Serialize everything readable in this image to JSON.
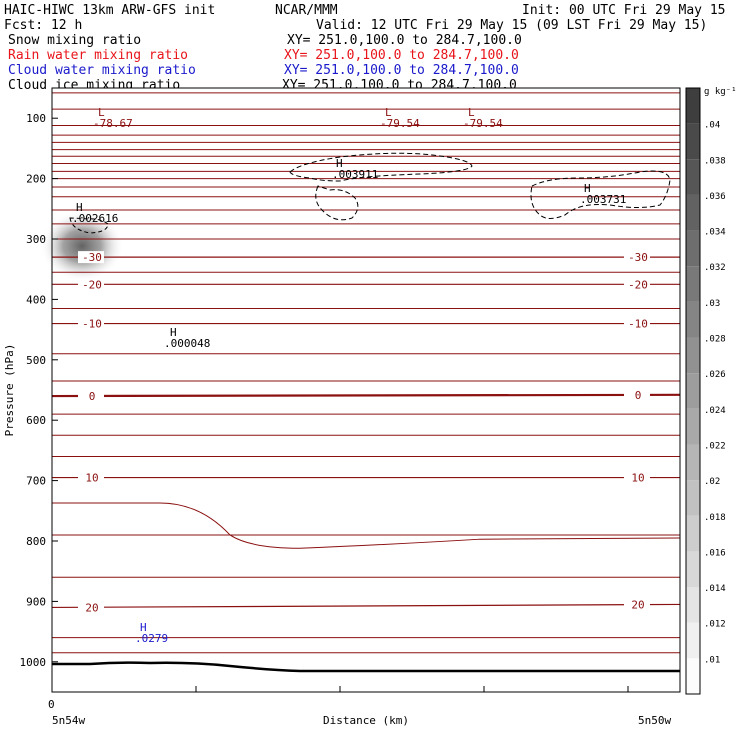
{
  "header": {
    "title_left": "HAIC-HIWC 13km ARW-GFS init",
    "center": "NCAR/MMM",
    "init": "Init: 00 UTC Fri 29 May 15",
    "fcst": "Fcst:   12 h",
    "valid": "Valid: 12 UTC Fri 29 May 15 (09 LST Fri 29 May 15)",
    "legend": [
      {
        "label": "Snow mixing ratio",
        "xy": "XY= 251.0,100.0 to 284.7,100.0",
        "color": "#000000"
      },
      {
        "label": "Rain water mixing ratio",
        "xy": "XY= 251.0,100.0 to 284.7,100.0",
        "color": "#e8141a"
      },
      {
        "label": "Cloud water mixing ratio",
        "xy": "XY= 251.0,100.0 to 284.7,100.0",
        "color": "#1a1acc"
      },
      {
        "label": "Cloud ice mixing ratio",
        "xy": "XY= 251.0,100.0 to 284.7,100.0",
        "color": "#000000"
      }
    ]
  },
  "chart_data": {
    "type": "cross-section",
    "xlabel": "Distance (km)",
    "ylabel": "Pressure (hPa)",
    "x_tick_labels": [
      "0"
    ],
    "x_end_labels": [
      "5n54w",
      "5n50w"
    ],
    "y_ticks": [
      100,
      200,
      300,
      400,
      500,
      600,
      700,
      800,
      900,
      1000
    ],
    "ylim": [
      1050,
      50
    ],
    "temperature_contour_color": "#8b1010",
    "temperature_contours": [
      {
        "label": "-30",
        "p": [
          330,
          330
        ]
      },
      {
        "label": "-20",
        "p": [
          375,
          375
        ]
      },
      {
        "label": "-10",
        "p": [
          440,
          440
        ]
      },
      {
        "label": "0",
        "p": [
          560,
          558
        ],
        "bold": true
      },
      {
        "label": "10",
        "p": [
          695,
          695
        ]
      },
      {
        "label": "20",
        "p": [
          910,
          905
        ]
      }
    ],
    "extremes": [
      {
        "type": "L",
        "value": "-78.67",
        "color": "#8b1010"
      },
      {
        "type": "L",
        "value": "-79.54",
        "color": "#8b1010"
      },
      {
        "type": "L",
        "value": "-79.54",
        "color": "#8b1010"
      },
      {
        "type": "H",
        "value": ".002616",
        "color": "#000000"
      },
      {
        "type": "H",
        "value": ".003911",
        "color": "#000000"
      },
      {
        "type": "H",
        "value": ".003731",
        "color": "#000000"
      },
      {
        "type": "H",
        "value": ".000048",
        "color": "#000000"
      },
      {
        "type": "H",
        "value": ".0279",
        "color": "#1a1acc"
      }
    ],
    "colorbar": {
      "unit": "g kg⁻¹",
      "levels": [
        ".01",
        ".012",
        ".014",
        ".016",
        ".018",
        ".02",
        ".022",
        ".024",
        ".026",
        ".028",
        ".03",
        ".032",
        ".034",
        ".036",
        ".038",
        ".04"
      ]
    }
  }
}
